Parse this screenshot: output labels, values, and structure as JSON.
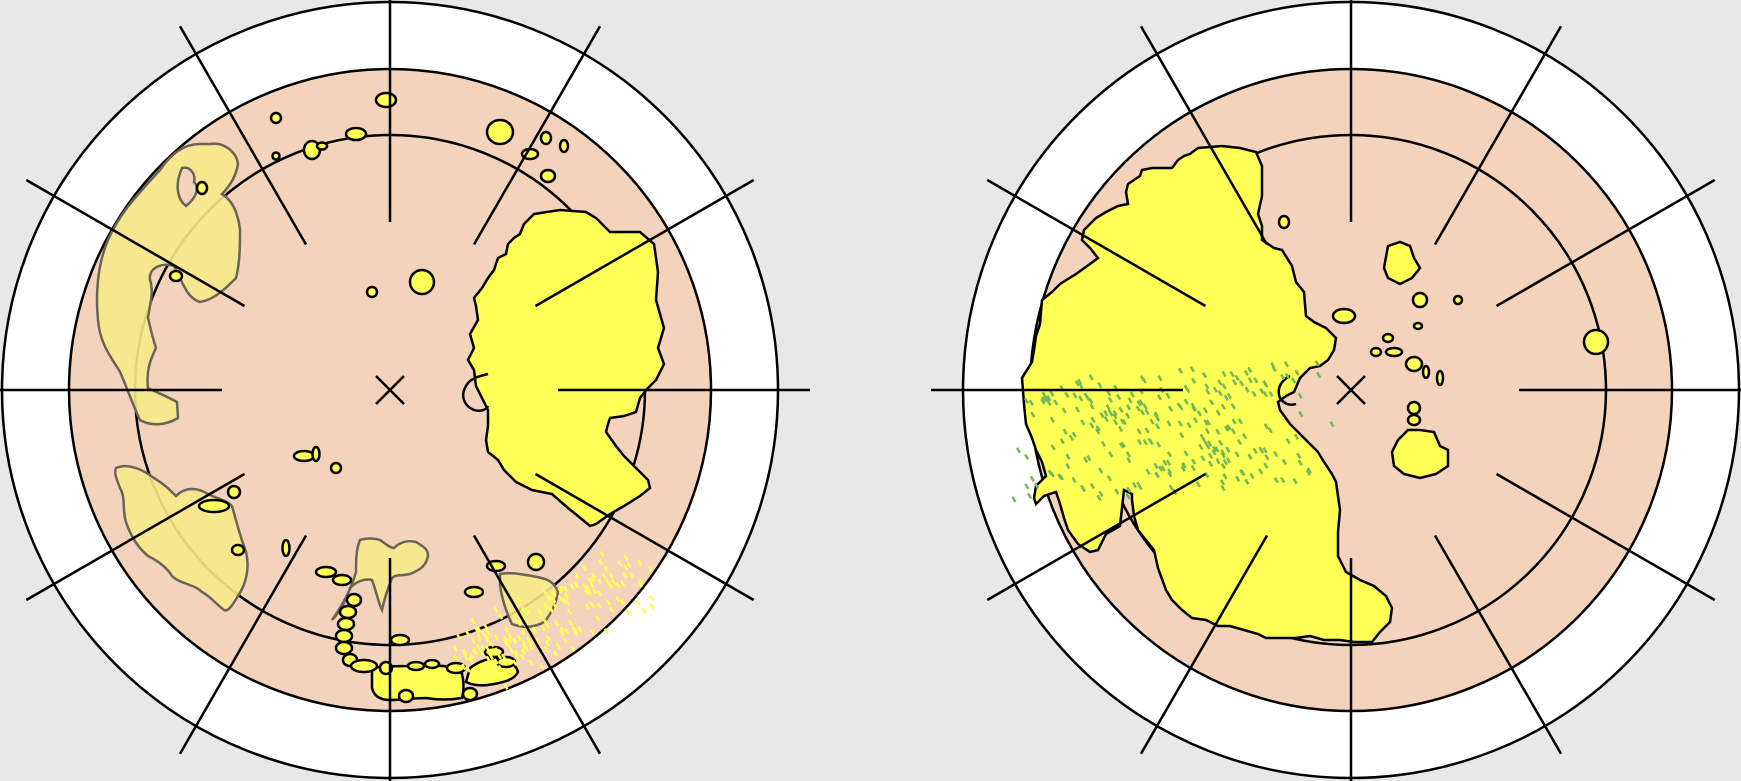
{
  "colors": {
    "background": "#e8e8e8",
    "outer_ring": "#ffffff",
    "retina": "#f3d3bc",
    "lesion": "#ffff55",
    "faint_lesion": "#f7e98a",
    "lesion_stroke": "#000000",
    "faint_stroke": "#6b6455",
    "hatch_yellow": "#ffff55",
    "hatch_green": "#6dbb5a",
    "line": "#000000"
  },
  "diagrams": [
    {
      "name": "left-fundus-diagram",
      "center_mark": "cross"
    },
    {
      "name": "right-fundus-diagram",
      "center_mark": "cross"
    }
  ]
}
